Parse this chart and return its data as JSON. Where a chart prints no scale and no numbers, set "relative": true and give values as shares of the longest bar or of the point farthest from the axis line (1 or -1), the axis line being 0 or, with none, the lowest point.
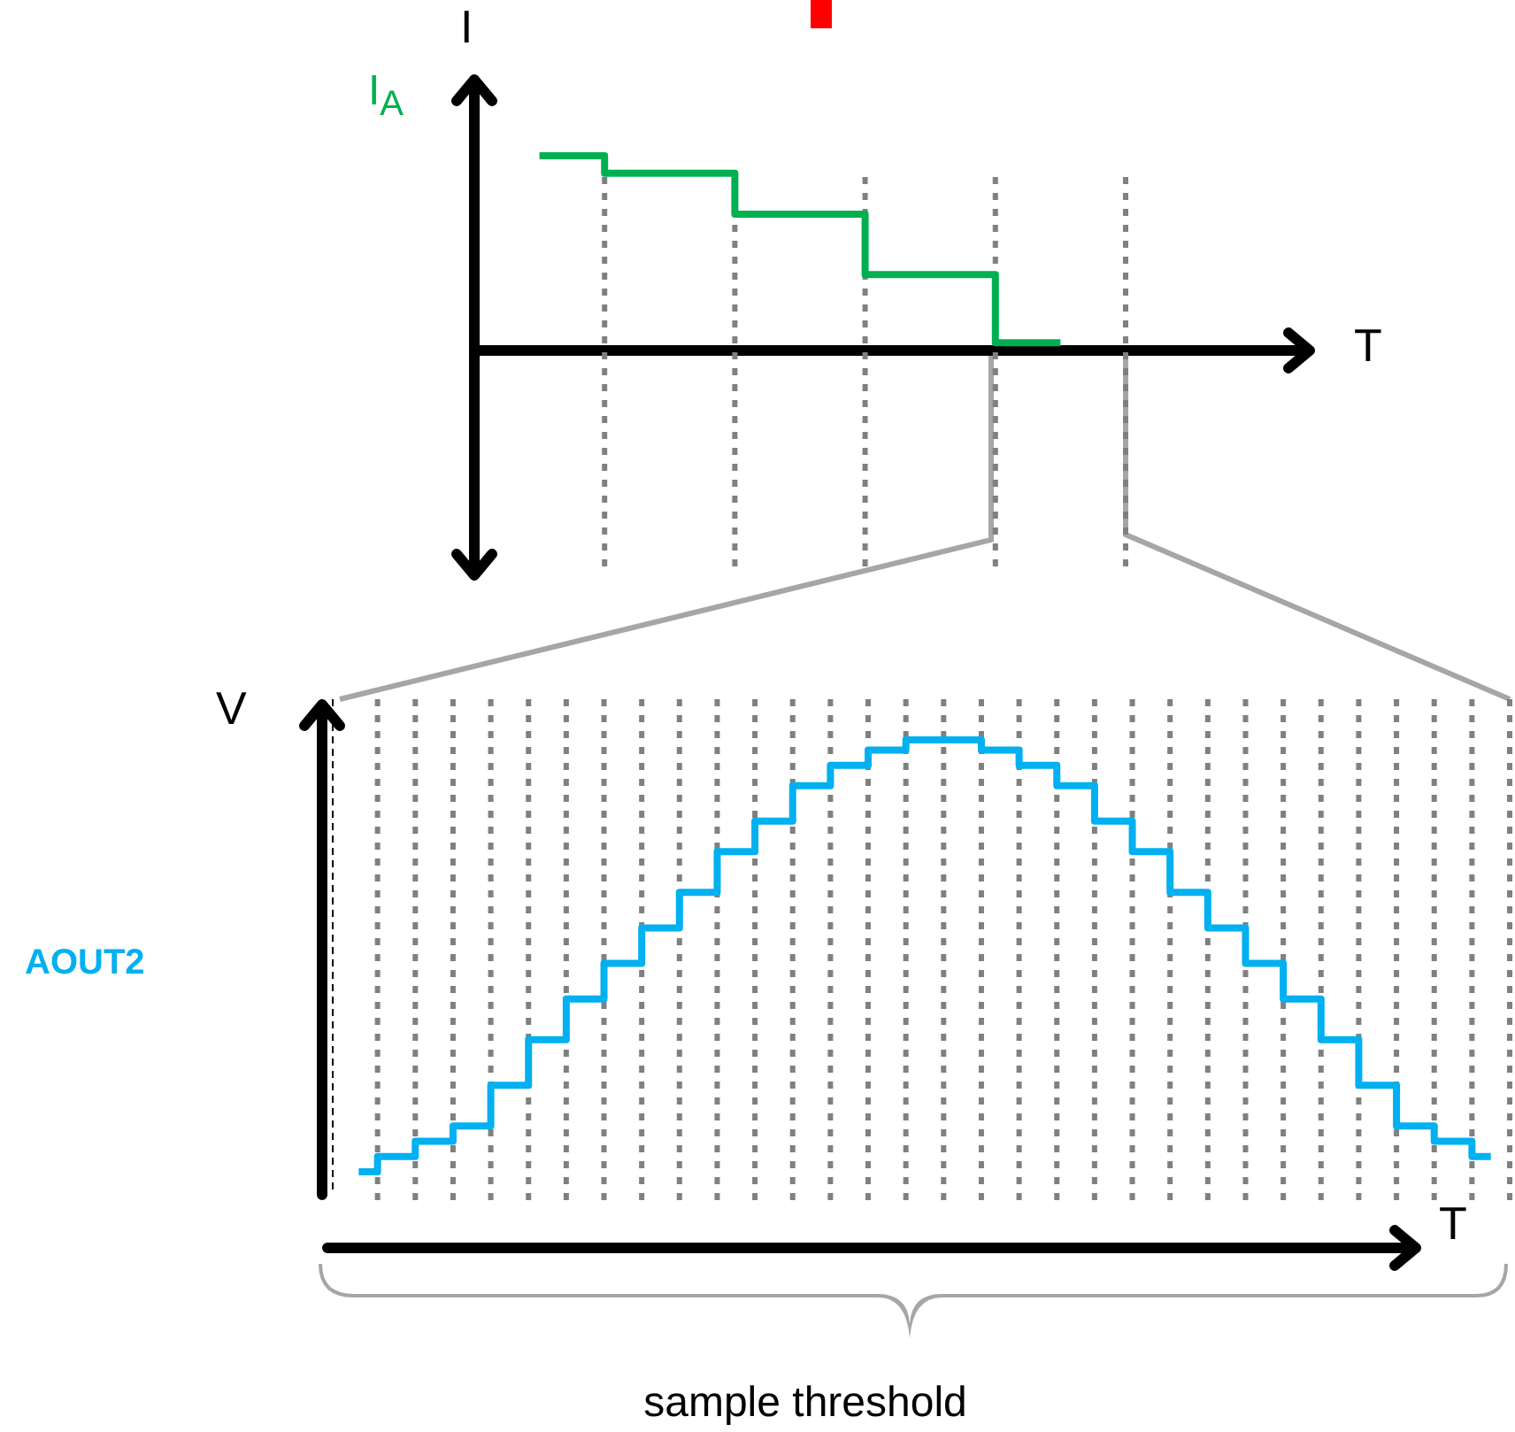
{
  "chart_data": [
    {
      "type": "step",
      "ylabel": "I",
      "xlabel": "T",
      "relative": true,
      "grid": "x",
      "categories": [
        null,
        null,
        null,
        null,
        null
      ],
      "series": [
        {
          "name": "I$_{A}$",
          "color": "#00b050",
          "values": [
            1,
            0.91,
            0.7,
            0.39,
            0.04
          ]
        }
      ]
    },
    {
      "type": "step",
      "ylabel": "V",
      "xlabel": "T",
      "relative": true,
      "grid": "x",
      "annotations": [
        "sample threshold"
      ],
      "categories": [
        null,
        null,
        null,
        null,
        null,
        null,
        null,
        null,
        null,
        null,
        null,
        null,
        null,
        null,
        null,
        null,
        null,
        null,
        null,
        null,
        null,
        null,
        null,
        null,
        null,
        null,
        null,
        null,
        null,
        null,
        null
      ],
      "series": [
        {
          "name": "AOUT2",
          "color": "#00b0f0",
          "values": [
            0.15,
            0.18,
            0.21,
            0.24,
            0.32,
            0.41,
            0.49,
            0.56,
            0.63,
            0.7,
            0.78,
            0.84,
            0.91,
            0.95,
            0.98,
            1,
            1,
            0.98,
            0.95,
            0.91,
            0.84,
            0.78,
            0.7,
            0.63,
            0.56,
            0.49,
            0.41,
            0.32,
            0.24,
            0.21,
            0.18
          ]
        }
      ]
    }
  ]
}
